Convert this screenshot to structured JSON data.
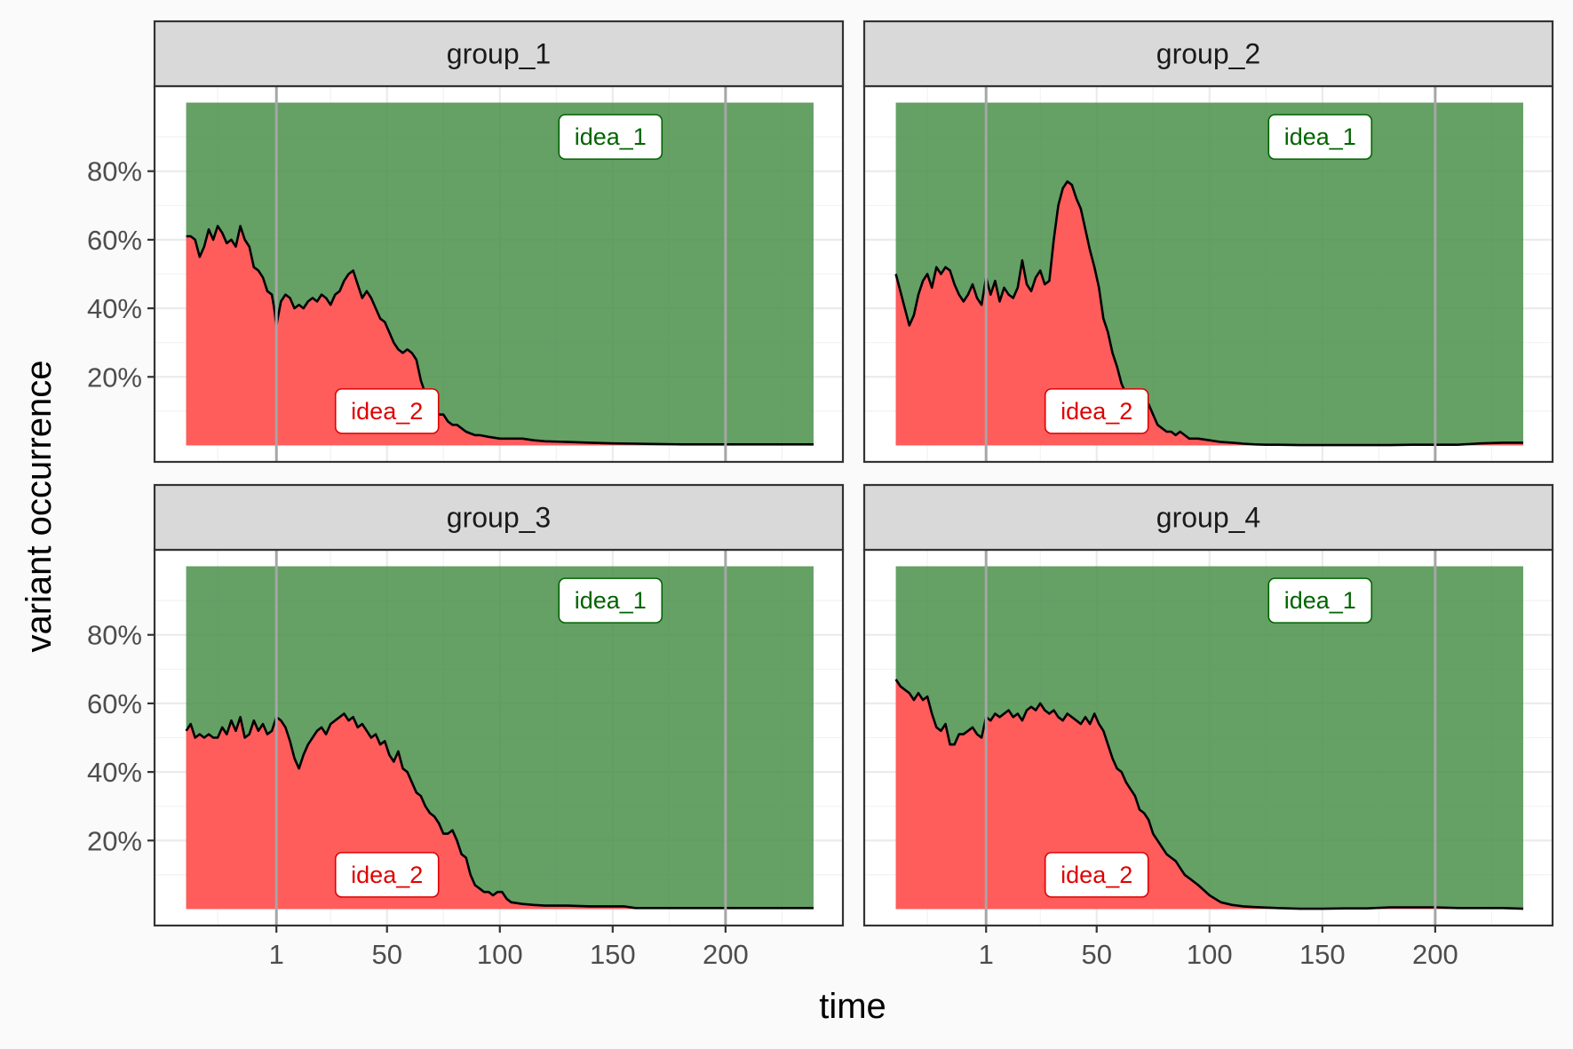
{
  "chart_data": {
    "type": "area",
    "layout": "facet-grid-2x2",
    "xlabel": "time",
    "ylabel": "variant occurrence",
    "xlim": [
      -53,
      252
    ],
    "ylim": [
      0,
      1
    ],
    "x_ticks": [
      1,
      50,
      100,
      150,
      200
    ],
    "x_tick_labels": [
      "1",
      "50",
      "100",
      "150",
      "200"
    ],
    "y_ticks": [
      0.2,
      0.4,
      0.6,
      0.8
    ],
    "y_tick_labels": [
      "20%",
      "40%",
      "60%",
      "80%"
    ],
    "vlines": [
      1,
      200
    ],
    "area_x_range": [
      -39,
      239
    ],
    "colors": {
      "idea_1": "#4a8f4a",
      "idea_2": "#ff5c5c",
      "idea_1_label_text": "#006400",
      "idea_2_label_text": "#e00000",
      "vline": "#a6a6a6",
      "line": "#000000",
      "strip_fill": "#d9d9d9"
    },
    "series_labels": [
      {
        "name": "idea_1",
        "x": 149,
        "y": 0.9
      },
      {
        "name": "idea_2",
        "x": 50,
        "y": 0.1
      }
    ],
    "panels": [
      {
        "title": "group_1",
        "x": [
          -39,
          -37,
          -35,
          -33,
          -31,
          -29,
          -27,
          -25,
          -23,
          -21,
          -19,
          -17,
          -15,
          -13,
          -11,
          -9,
          -7,
          -5,
          -3,
          -1,
          0,
          1,
          3,
          5,
          7,
          9,
          11,
          13,
          15,
          17,
          19,
          21,
          23,
          25,
          27,
          29,
          31,
          33,
          35,
          37,
          39,
          41,
          43,
          45,
          47,
          49,
          51,
          53,
          55,
          57,
          59,
          61,
          63,
          65,
          67,
          69,
          71,
          73,
          75,
          77,
          79,
          81,
          83,
          85,
          87,
          89,
          91,
          95,
          100,
          105,
          110,
          115,
          120,
          130,
          140,
          150,
          160,
          170,
          180,
          190,
          200,
          210,
          220,
          230,
          239
        ],
        "y": [
          0.61,
          0.61,
          0.6,
          0.55,
          0.58,
          0.63,
          0.6,
          0.64,
          0.62,
          0.59,
          0.6,
          0.58,
          0.64,
          0.6,
          0.58,
          0.52,
          0.51,
          0.49,
          0.45,
          0.44,
          0.4,
          0.35,
          0.42,
          0.44,
          0.43,
          0.4,
          0.41,
          0.4,
          0.42,
          0.43,
          0.42,
          0.44,
          0.43,
          0.41,
          0.44,
          0.45,
          0.48,
          0.5,
          0.51,
          0.47,
          0.43,
          0.45,
          0.43,
          0.4,
          0.37,
          0.36,
          0.33,
          0.3,
          0.28,
          0.27,
          0.28,
          0.27,
          0.25,
          0.19,
          0.15,
          0.13,
          0.11,
          0.09,
          0.09,
          0.07,
          0.06,
          0.06,
          0.05,
          0.04,
          0.035,
          0.03,
          0.03,
          0.025,
          0.02,
          0.02,
          0.02,
          0.015,
          0.012,
          0.01,
          0.008,
          0.006,
          0.005,
          0.004,
          0.003,
          0.003,
          0.003,
          0.003,
          0.003,
          0.003,
          0.003
        ]
      },
      {
        "title": "group_2",
        "x": [
          -39,
          -37,
          -35,
          -33,
          -31,
          -29,
          -27,
          -25,
          -23,
          -21,
          -19,
          -17,
          -15,
          -13,
          -11,
          -9,
          -7,
          -5,
          -3,
          -1,
          1,
          3,
          5,
          7,
          9,
          11,
          13,
          15,
          17,
          19,
          21,
          23,
          25,
          27,
          29,
          31,
          33,
          35,
          37,
          39,
          41,
          43,
          45,
          47,
          49,
          51,
          53,
          55,
          57,
          59,
          61,
          63,
          65,
          67,
          69,
          71,
          73,
          75,
          77,
          79,
          81,
          83,
          85,
          87,
          89,
          91,
          95,
          100,
          105,
          110,
          115,
          120,
          125,
          130,
          140,
          150,
          160,
          170,
          180,
          190,
          200,
          210,
          220,
          230,
          239
        ],
        "y": [
          0.5,
          0.45,
          0.4,
          0.35,
          0.38,
          0.44,
          0.48,
          0.5,
          0.46,
          0.52,
          0.5,
          0.52,
          0.51,
          0.47,
          0.44,
          0.42,
          0.44,
          0.47,
          0.43,
          0.41,
          0.49,
          0.44,
          0.48,
          0.42,
          0.46,
          0.44,
          0.43,
          0.46,
          0.54,
          0.47,
          0.45,
          0.49,
          0.51,
          0.47,
          0.48,
          0.6,
          0.7,
          0.75,
          0.77,
          0.76,
          0.72,
          0.69,
          0.63,
          0.57,
          0.52,
          0.46,
          0.37,
          0.33,
          0.27,
          0.23,
          0.18,
          0.15,
          0.15,
          0.13,
          0.14,
          0.13,
          0.12,
          0.09,
          0.06,
          0.05,
          0.04,
          0.04,
          0.03,
          0.04,
          0.03,
          0.02,
          0.02,
          0.015,
          0.01,
          0.008,
          0.005,
          0.003,
          0.002,
          0.002,
          0.001,
          0.001,
          0.001,
          0.001,
          0.001,
          0.002,
          0.002,
          0.002,
          0.006,
          0.008,
          0.008
        ]
      },
      {
        "title": "group_3",
        "x": [
          -39,
          -37,
          -35,
          -33,
          -31,
          -29,
          -27,
          -25,
          -23,
          -21,
          -19,
          -17,
          -15,
          -13,
          -11,
          -9,
          -7,
          -5,
          -3,
          -1,
          1,
          3,
          5,
          7,
          9,
          11,
          13,
          15,
          17,
          19,
          21,
          23,
          25,
          27,
          29,
          31,
          33,
          35,
          37,
          39,
          41,
          43,
          45,
          47,
          49,
          51,
          53,
          55,
          57,
          59,
          61,
          63,
          65,
          67,
          69,
          71,
          73,
          75,
          77,
          79,
          81,
          83,
          85,
          87,
          89,
          91,
          93,
          95,
          97,
          99,
          101,
          103,
          105,
          110,
          115,
          120,
          130,
          140,
          150,
          155,
          160,
          170,
          180,
          190,
          200,
          210,
          220,
          230,
          239
        ],
        "y": [
          0.52,
          0.54,
          0.5,
          0.51,
          0.5,
          0.51,
          0.5,
          0.5,
          0.53,
          0.51,
          0.55,
          0.52,
          0.56,
          0.5,
          0.51,
          0.55,
          0.52,
          0.54,
          0.51,
          0.52,
          0.56,
          0.55,
          0.53,
          0.49,
          0.44,
          0.41,
          0.45,
          0.48,
          0.5,
          0.52,
          0.53,
          0.51,
          0.54,
          0.55,
          0.56,
          0.57,
          0.55,
          0.56,
          0.53,
          0.54,
          0.52,
          0.5,
          0.51,
          0.48,
          0.49,
          0.45,
          0.43,
          0.46,
          0.41,
          0.4,
          0.37,
          0.34,
          0.33,
          0.3,
          0.28,
          0.27,
          0.25,
          0.22,
          0.22,
          0.23,
          0.2,
          0.16,
          0.15,
          0.1,
          0.07,
          0.06,
          0.05,
          0.05,
          0.04,
          0.05,
          0.05,
          0.03,
          0.02,
          0.015,
          0.012,
          0.01,
          0.01,
          0.008,
          0.008,
          0.008,
          0.003,
          0.003,
          0.003,
          0.003,
          0.003,
          0.003,
          0.003,
          0.003,
          0.003
        ]
      },
      {
        "title": "group_4",
        "x": [
          -39,
          -37,
          -35,
          -33,
          -31,
          -29,
          -27,
          -25,
          -23,
          -21,
          -19,
          -17,
          -15,
          -13,
          -11,
          -9,
          -7,
          -5,
          -3,
          -1,
          1,
          3,
          5,
          7,
          9,
          11,
          13,
          15,
          17,
          19,
          21,
          23,
          25,
          27,
          29,
          31,
          33,
          35,
          37,
          39,
          41,
          43,
          45,
          47,
          49,
          51,
          53,
          55,
          57,
          59,
          61,
          63,
          65,
          67,
          69,
          71,
          73,
          75,
          77,
          79,
          81,
          83,
          85,
          87,
          89,
          91,
          95,
          100,
          105,
          110,
          115,
          120,
          130,
          140,
          150,
          160,
          170,
          180,
          190,
          200,
          210,
          220,
          230,
          239
        ],
        "y": [
          0.67,
          0.65,
          0.64,
          0.63,
          0.61,
          0.63,
          0.61,
          0.62,
          0.57,
          0.53,
          0.52,
          0.54,
          0.48,
          0.48,
          0.51,
          0.51,
          0.52,
          0.53,
          0.51,
          0.5,
          0.56,
          0.55,
          0.57,
          0.56,
          0.57,
          0.58,
          0.56,
          0.57,
          0.55,
          0.58,
          0.59,
          0.58,
          0.6,
          0.58,
          0.57,
          0.58,
          0.56,
          0.55,
          0.57,
          0.56,
          0.55,
          0.54,
          0.56,
          0.54,
          0.57,
          0.54,
          0.52,
          0.48,
          0.44,
          0.41,
          0.4,
          0.37,
          0.35,
          0.33,
          0.29,
          0.28,
          0.26,
          0.22,
          0.2,
          0.18,
          0.16,
          0.15,
          0.14,
          0.12,
          0.1,
          0.09,
          0.07,
          0.04,
          0.02,
          0.012,
          0.008,
          0.006,
          0.003,
          0.001,
          0.001,
          0.002,
          0.002,
          0.005,
          0.005,
          0.005,
          0.003,
          0.003,
          0.003,
          0.001
        ]
      }
    ]
  }
}
